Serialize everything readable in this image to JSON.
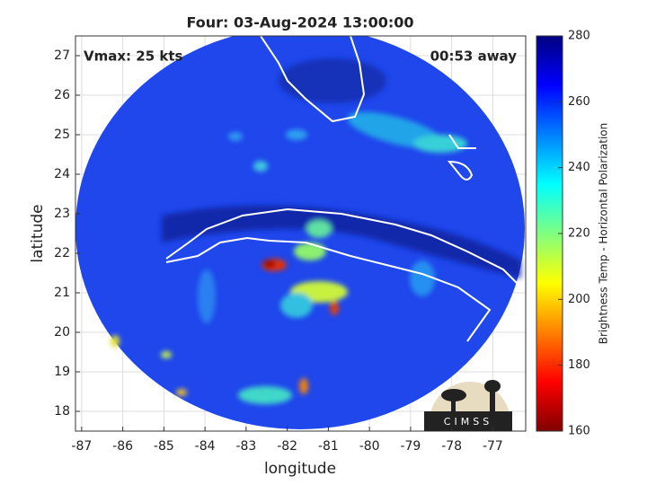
{
  "chart_data": {
    "type": "map",
    "title": "Four: 03-Aug-2024 13:00:00",
    "annotations": [
      "Vmax: 25 kts",
      "00:53 away"
    ],
    "xlabel": "longitude",
    "ylabel": "latitude",
    "xlim": [
      -87.15,
      -76.2
    ],
    "ylim": [
      17.5,
      27.5
    ],
    "xticks": [
      -87,
      -86,
      -85,
      -84,
      -83,
      -82,
      -81,
      -80,
      -79,
      -78,
      -77
    ],
    "yticks": [
      18,
      19,
      20,
      21,
      22,
      23,
      24,
      25,
      26,
      27
    ],
    "grid": true,
    "colorbar": {
      "label": "Brightness Temp - Horizontal Polarization",
      "clim": [
        160,
        280
      ],
      "ticks": [
        160,
        180,
        200,
        220,
        240,
        260,
        280
      ],
      "colormap": "jet"
    },
    "logo_text": "CIMSS"
  }
}
